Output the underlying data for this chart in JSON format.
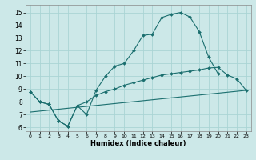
{
  "xlabel": "Humidex (Indice chaleur)",
  "xlim": [
    -0.5,
    23.5
  ],
  "ylim": [
    5.7,
    15.6
  ],
  "yticks": [
    6,
    7,
    8,
    9,
    10,
    11,
    12,
    13,
    14,
    15
  ],
  "xticks": [
    0,
    1,
    2,
    3,
    4,
    5,
    6,
    7,
    8,
    9,
    10,
    11,
    12,
    13,
    14,
    15,
    16,
    17,
    18,
    19,
    20,
    21,
    22,
    23
  ],
  "bg_color": "#cce8e8",
  "grid_color": "#aad4d4",
  "line_color": "#1a6e6e",
  "curve1_x": [
    0,
    1,
    2,
    3,
    4,
    5,
    6,
    7,
    8,
    9,
    10,
    11,
    12,
    13,
    14,
    15,
    16,
    17,
    18,
    19,
    20
  ],
  "curve1_y": [
    8.8,
    8.0,
    7.8,
    6.5,
    6.1,
    7.7,
    7.0,
    8.9,
    10.0,
    10.8,
    11.0,
    12.0,
    13.2,
    13.3,
    14.6,
    14.85,
    15.0,
    14.65,
    13.5,
    11.5,
    10.2
  ],
  "curve2_x": [
    0,
    1,
    2,
    3,
    4,
    5,
    6,
    7,
    8,
    9,
    10,
    11,
    12,
    13,
    14,
    15,
    16,
    17,
    18,
    19,
    20,
    21,
    22,
    23
  ],
  "curve2_y": [
    8.8,
    8.0,
    7.8,
    6.5,
    6.1,
    7.7,
    8.0,
    8.5,
    8.8,
    9.0,
    9.3,
    9.5,
    9.7,
    9.9,
    10.1,
    10.2,
    10.3,
    10.4,
    10.5,
    10.65,
    10.7,
    10.1,
    9.8,
    8.9
  ],
  "line3_x": [
    0,
    23
  ],
  "line3_y": [
    7.2,
    8.9
  ]
}
